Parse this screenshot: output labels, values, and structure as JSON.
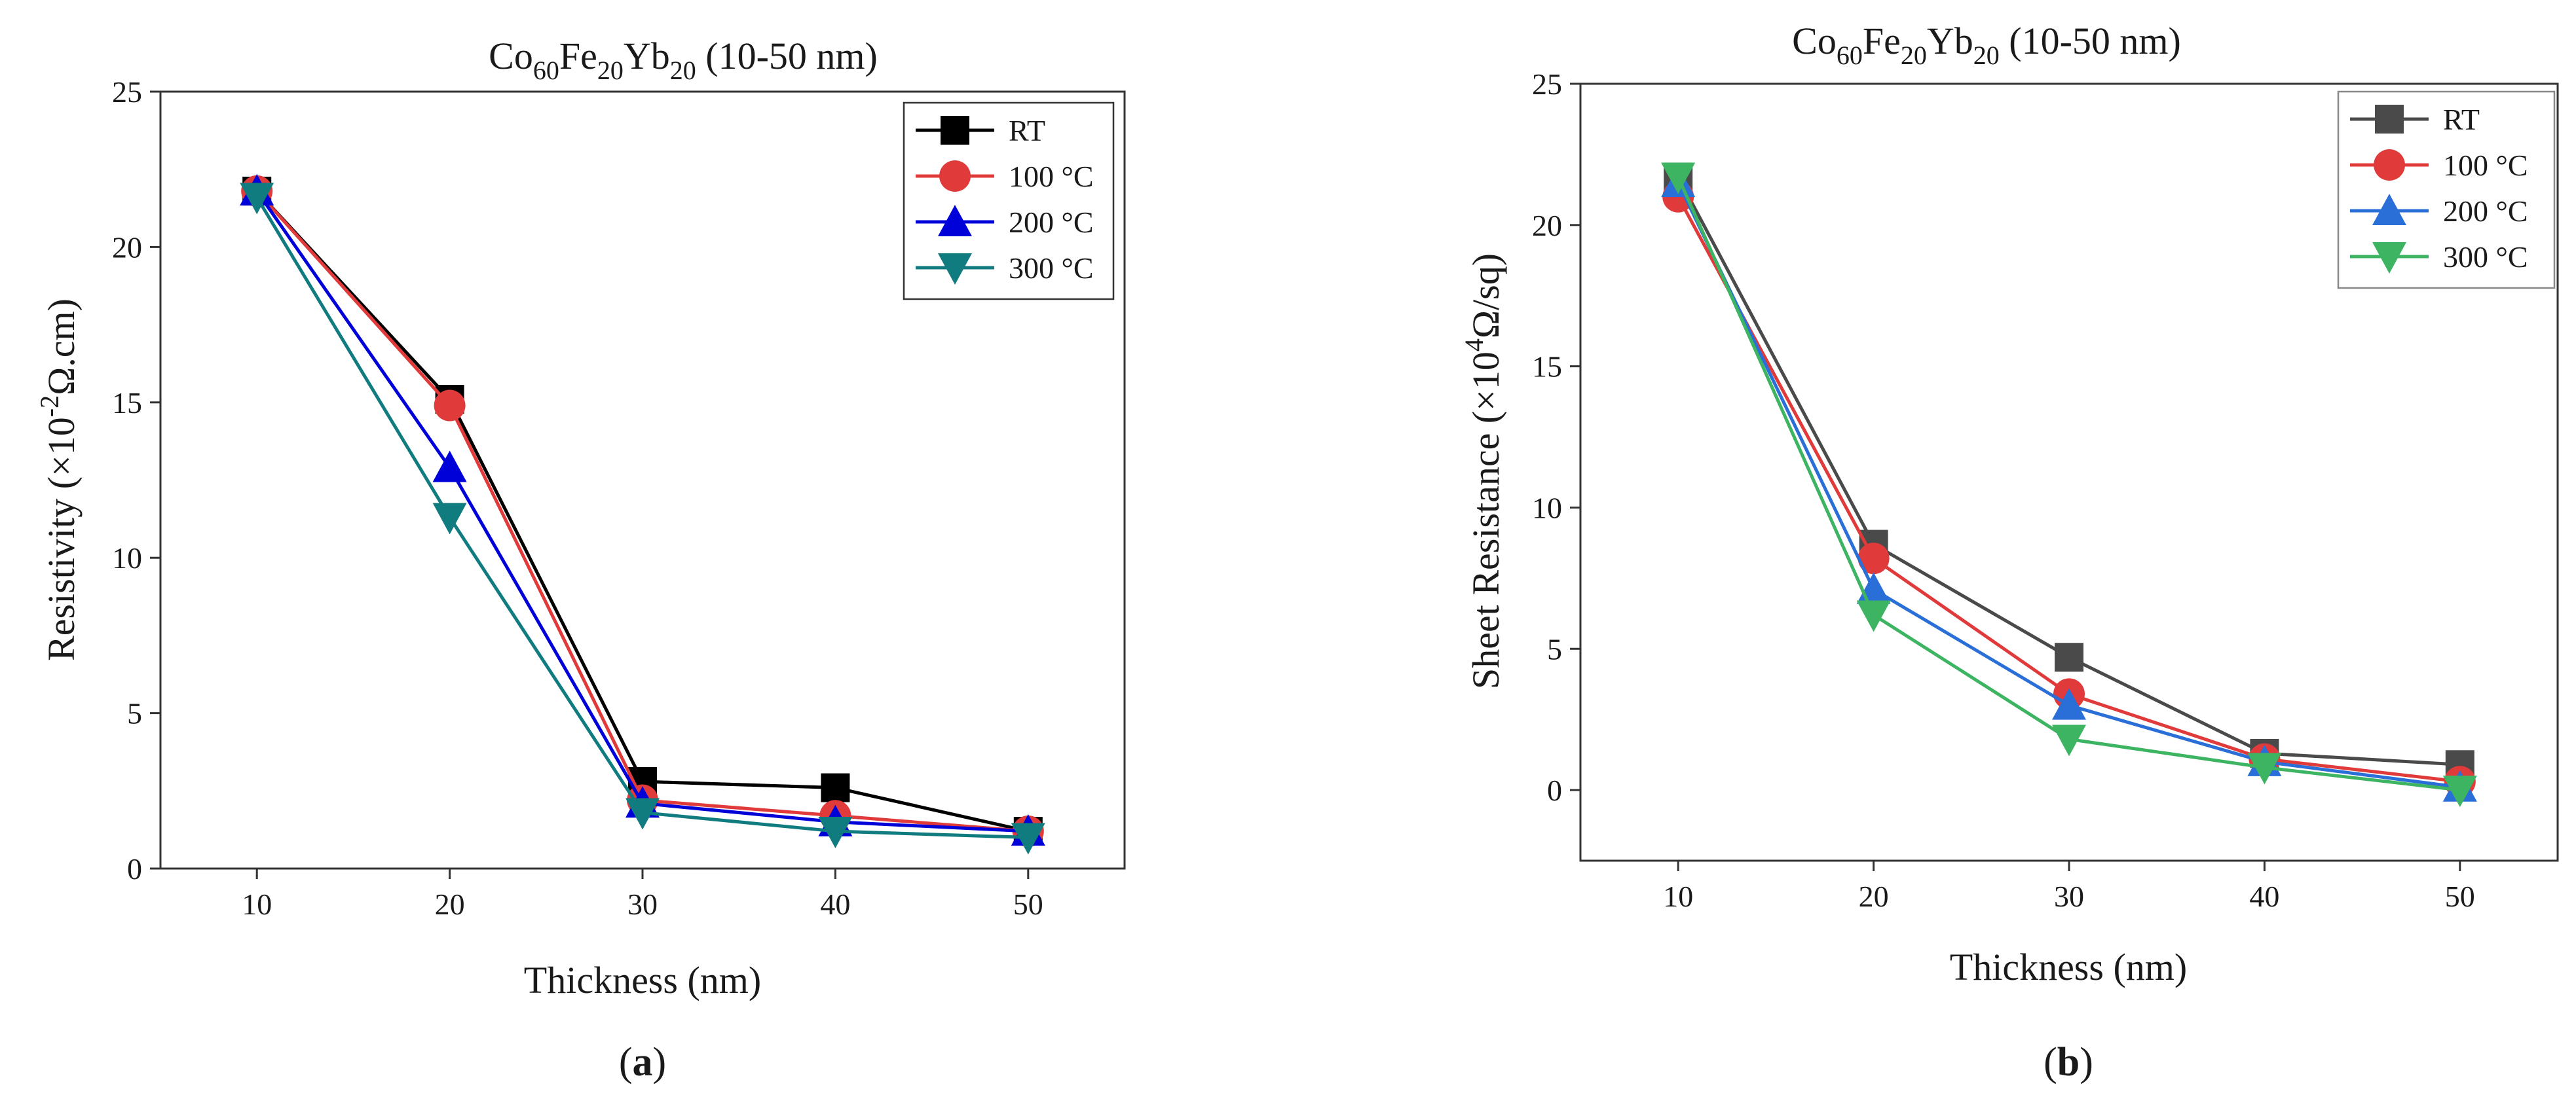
{
  "chart_data": [
    {
      "type": "line",
      "panel_label": "a",
      "title": {
        "base1": "Co",
        "sub1": "60",
        "base2": "Fe",
        "sub2": "20",
        "base3": "Yb",
        "sub3": "20",
        "rest": " (10-50 nm)"
      },
      "xlabel": "Thickness (nm)",
      "ylabel": {
        "pre": "Resistivity (×10",
        "sup": "-2",
        "post": "Ω.cm)"
      },
      "x": [
        10,
        20,
        30,
        40,
        50
      ],
      "xlim": [
        5,
        55
      ],
      "ylim": [
        0,
        25
      ],
      "xticks": [
        10,
        20,
        30,
        40,
        50
      ],
      "yticks": [
        0,
        5,
        10,
        15,
        20,
        25
      ],
      "legend_position": "top-right",
      "series": [
        {
          "name": "RT",
          "color": "#000000",
          "marker": "square",
          "values": [
            21.8,
            15.1,
            2.8,
            2.6,
            1.2
          ]
        },
        {
          "name": "100 °C",
          "color": "#e03a3a",
          "marker": "circle",
          "values": [
            21.8,
            14.9,
            2.2,
            1.7,
            1.2
          ]
        },
        {
          "name": "200 °C",
          "color": "#0000d8",
          "marker": "triangle-up",
          "values": [
            21.8,
            12.9,
            2.1,
            1.5,
            1.2
          ]
        },
        {
          "name": "300 °C",
          "color": "#117c80",
          "marker": "triangle-down",
          "values": [
            21.6,
            11.3,
            1.8,
            1.2,
            1.0
          ]
        }
      ]
    },
    {
      "type": "line",
      "panel_label": "b",
      "title": {
        "base1": "Co",
        "sub1": "60",
        "base2": "Fe",
        "sub2": "20",
        "base3": "Yb",
        "sub3": "20",
        "rest": " (10-50 nm)"
      },
      "xlabel": "Thickness (nm)",
      "ylabel": {
        "pre": "Sheet Resistance (×10",
        "sup": "4",
        "post": "Ω/sq)"
      },
      "x": [
        10,
        20,
        30,
        40,
        50
      ],
      "xlim": [
        5,
        55
      ],
      "ylim": [
        -2.5,
        25
      ],
      "xticks": [
        10,
        20,
        30,
        40,
        50
      ],
      "yticks": [
        0,
        5,
        10,
        15,
        20,
        25
      ],
      "legend_position": "top-right",
      "series": [
        {
          "name": "RT",
          "color": "#4a4a4a",
          "marker": "square",
          "values": [
            21.7,
            8.7,
            4.7,
            1.3,
            0.9
          ]
        },
        {
          "name": "100 °C",
          "color": "#e03a3a",
          "marker": "circle",
          "values": [
            21.0,
            8.2,
            3.4,
            1.1,
            0.3
          ]
        },
        {
          "name": "200 °C",
          "color": "#2a6fd8",
          "marker": "triangle-up",
          "values": [
            21.5,
            7.1,
            3.0,
            1.0,
            0.1
          ]
        },
        {
          "name": "300 °C",
          "color": "#3cb462",
          "marker": "triangle-down",
          "values": [
            21.7,
            6.2,
            1.8,
            0.8,
            0.0
          ]
        }
      ]
    }
  ]
}
